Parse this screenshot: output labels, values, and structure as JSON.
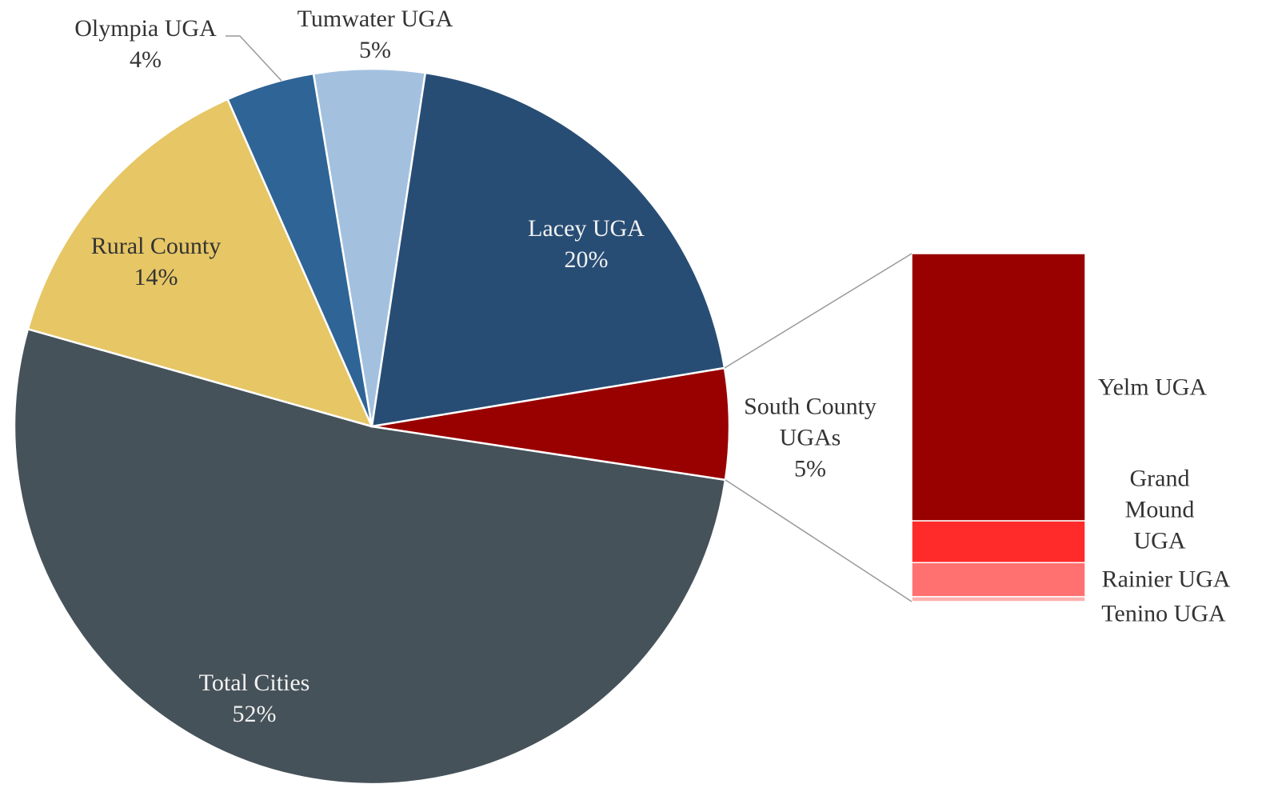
{
  "chart_data": {
    "type": "pie",
    "categories": [
      "Total Cities",
      "Rural County",
      "Olympia UGA",
      "Tumwater UGA",
      "Lacey UGA",
      "South County UGAs"
    ],
    "values": [
      52,
      14,
      4,
      5,
      20,
      5
    ],
    "value_labels": [
      "52%",
      "14%",
      "4%",
      "5%",
      "20%",
      "5%"
    ],
    "colors": [
      "#465259",
      "#e6c665",
      "#2f6496",
      "#a3c1df",
      "#284d74",
      "#990000"
    ],
    "breakdown": {
      "categories": [
        "Yelm UGA",
        "Grand Mound UGA",
        "Rainier UGA",
        "Tenino UGA"
      ],
      "values": [
        3.84,
        0.6,
        0.49,
        0.07
      ],
      "colors": [
        "#990000",
        "#ff2b2b",
        "#ff7070",
        "#ffb0b0"
      ]
    }
  }
}
